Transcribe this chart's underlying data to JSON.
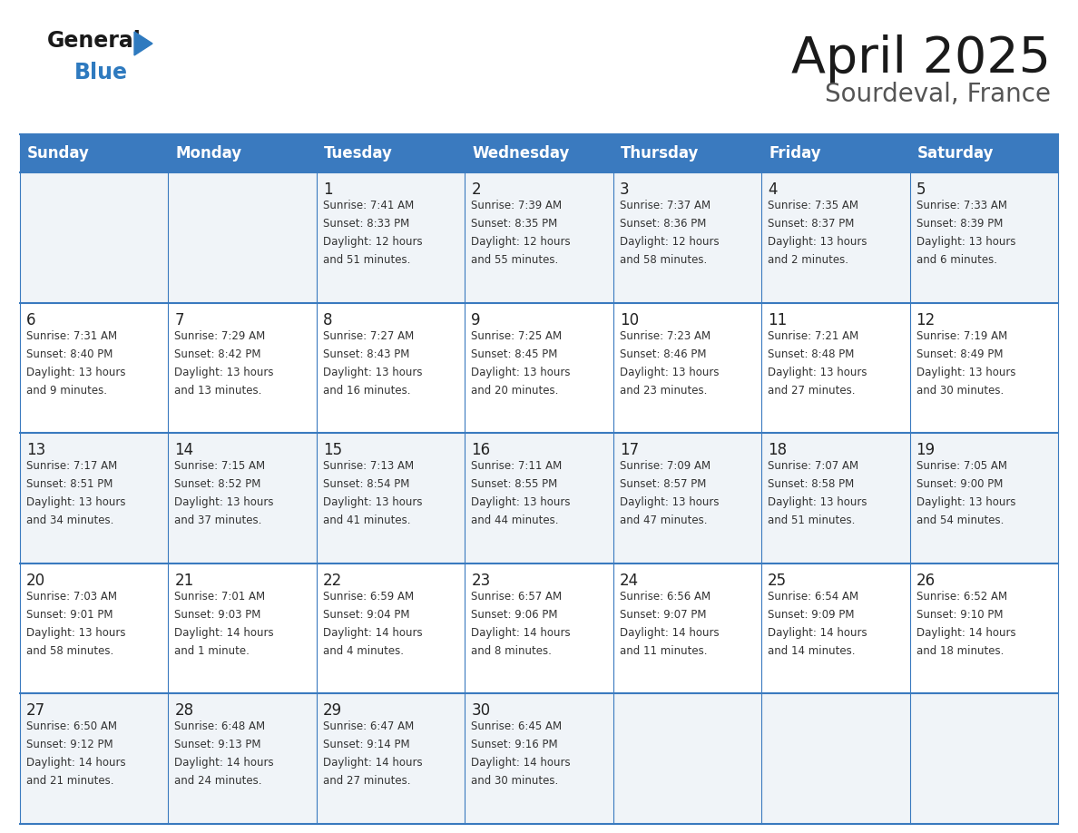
{
  "title": "April 2025",
  "subtitle": "Sourdeval, France",
  "header_bg": "#3a7abf",
  "header_text": "#ffffff",
  "days_of_week": [
    "Sunday",
    "Monday",
    "Tuesday",
    "Wednesday",
    "Thursday",
    "Friday",
    "Saturday"
  ],
  "row_bg_even": "#f0f4f8",
  "row_bg_odd": "#ffffff",
  "cell_border": "#3a7abf",
  "day_number_color": "#222222",
  "info_text_color": "#333333",
  "logo_general_color": "#222222",
  "logo_blue_color": "#2e7abf",
  "calendar_data": [
    {
      "day": null,
      "sunrise": null,
      "sunset": null,
      "daylight": null
    },
    {
      "day": null,
      "sunrise": null,
      "sunset": null,
      "daylight": null
    },
    {
      "day": 1,
      "sunrise": "7:41 AM",
      "sunset": "8:33 PM",
      "daylight": "12 hours\nand 51 minutes."
    },
    {
      "day": 2,
      "sunrise": "7:39 AM",
      "sunset": "8:35 PM",
      "daylight": "12 hours\nand 55 minutes."
    },
    {
      "day": 3,
      "sunrise": "7:37 AM",
      "sunset": "8:36 PM",
      "daylight": "12 hours\nand 58 minutes."
    },
    {
      "day": 4,
      "sunrise": "7:35 AM",
      "sunset": "8:37 PM",
      "daylight": "13 hours\nand 2 minutes."
    },
    {
      "day": 5,
      "sunrise": "7:33 AM",
      "sunset": "8:39 PM",
      "daylight": "13 hours\nand 6 minutes."
    },
    {
      "day": 6,
      "sunrise": "7:31 AM",
      "sunset": "8:40 PM",
      "daylight": "13 hours\nand 9 minutes."
    },
    {
      "day": 7,
      "sunrise": "7:29 AM",
      "sunset": "8:42 PM",
      "daylight": "13 hours\nand 13 minutes."
    },
    {
      "day": 8,
      "sunrise": "7:27 AM",
      "sunset": "8:43 PM",
      "daylight": "13 hours\nand 16 minutes."
    },
    {
      "day": 9,
      "sunrise": "7:25 AM",
      "sunset": "8:45 PM",
      "daylight": "13 hours\nand 20 minutes."
    },
    {
      "day": 10,
      "sunrise": "7:23 AM",
      "sunset": "8:46 PM",
      "daylight": "13 hours\nand 23 minutes."
    },
    {
      "day": 11,
      "sunrise": "7:21 AM",
      "sunset": "8:48 PM",
      "daylight": "13 hours\nand 27 minutes."
    },
    {
      "day": 12,
      "sunrise": "7:19 AM",
      "sunset": "8:49 PM",
      "daylight": "13 hours\nand 30 minutes."
    },
    {
      "day": 13,
      "sunrise": "7:17 AM",
      "sunset": "8:51 PM",
      "daylight": "13 hours\nand 34 minutes."
    },
    {
      "day": 14,
      "sunrise": "7:15 AM",
      "sunset": "8:52 PM",
      "daylight": "13 hours\nand 37 minutes."
    },
    {
      "day": 15,
      "sunrise": "7:13 AM",
      "sunset": "8:54 PM",
      "daylight": "13 hours\nand 41 minutes."
    },
    {
      "day": 16,
      "sunrise": "7:11 AM",
      "sunset": "8:55 PM",
      "daylight": "13 hours\nand 44 minutes."
    },
    {
      "day": 17,
      "sunrise": "7:09 AM",
      "sunset": "8:57 PM",
      "daylight": "13 hours\nand 47 minutes."
    },
    {
      "day": 18,
      "sunrise": "7:07 AM",
      "sunset": "8:58 PM",
      "daylight": "13 hours\nand 51 minutes."
    },
    {
      "day": 19,
      "sunrise": "7:05 AM",
      "sunset": "9:00 PM",
      "daylight": "13 hours\nand 54 minutes."
    },
    {
      "day": 20,
      "sunrise": "7:03 AM",
      "sunset": "9:01 PM",
      "daylight": "13 hours\nand 58 minutes."
    },
    {
      "day": 21,
      "sunrise": "7:01 AM",
      "sunset": "9:03 PM",
      "daylight": "14 hours\nand 1 minute."
    },
    {
      "day": 22,
      "sunrise": "6:59 AM",
      "sunset": "9:04 PM",
      "daylight": "14 hours\nand 4 minutes."
    },
    {
      "day": 23,
      "sunrise": "6:57 AM",
      "sunset": "9:06 PM",
      "daylight": "14 hours\nand 8 minutes."
    },
    {
      "day": 24,
      "sunrise": "6:56 AM",
      "sunset": "9:07 PM",
      "daylight": "14 hours\nand 11 minutes."
    },
    {
      "day": 25,
      "sunrise": "6:54 AM",
      "sunset": "9:09 PM",
      "daylight": "14 hours\nand 14 minutes."
    },
    {
      "day": 26,
      "sunrise": "6:52 AM",
      "sunset": "9:10 PM",
      "daylight": "14 hours\nand 18 minutes."
    },
    {
      "day": 27,
      "sunrise": "6:50 AM",
      "sunset": "9:12 PM",
      "daylight": "14 hours\nand 21 minutes."
    },
    {
      "day": 28,
      "sunrise": "6:48 AM",
      "sunset": "9:13 PM",
      "daylight": "14 hours\nand 24 minutes."
    },
    {
      "day": 29,
      "sunrise": "6:47 AM",
      "sunset": "9:14 PM",
      "daylight": "14 hours\nand 27 minutes."
    },
    {
      "day": 30,
      "sunrise": "6:45 AM",
      "sunset": "9:16 PM",
      "daylight": "14 hours\nand 30 minutes."
    },
    {
      "day": null,
      "sunrise": null,
      "sunset": null,
      "daylight": null
    },
    {
      "day": null,
      "sunrise": null,
      "sunset": null,
      "daylight": null
    },
    {
      "day": null,
      "sunrise": null,
      "sunset": null,
      "daylight": null
    }
  ]
}
